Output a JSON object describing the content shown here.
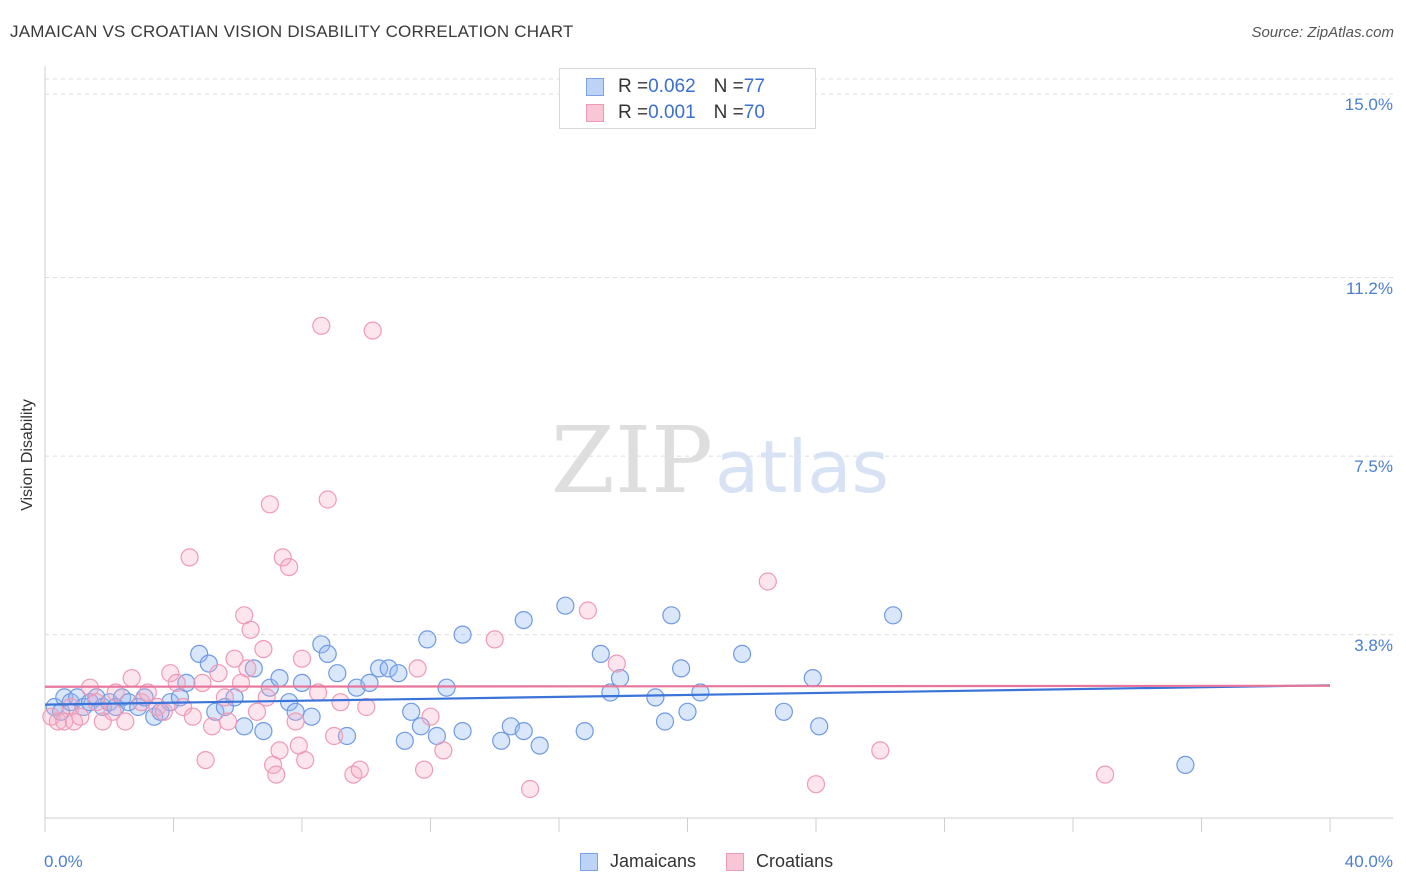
{
  "title": "JAMAICAN VS CROATIAN VISION DISABILITY CORRELATION CHART",
  "source": "Source: ZipAtlas.com",
  "watermark": {
    "zip": "ZIP",
    "atlas": "atlas"
  },
  "legend": {
    "rows": [
      {
        "r_label": "R = ",
        "r_value": "0.062",
        "n_label": "N = ",
        "n_value": "77",
        "color": "#6699ee"
      },
      {
        "r_label": "R = ",
        "r_value": "0.001",
        "n_label": "N = ",
        "n_value": "70",
        "color": "#f28fb0"
      }
    ]
  },
  "chart_data": {
    "type": "scatter",
    "title": "JAMAICAN VS CROATIAN VISION DISABILITY CORRELATION CHART",
    "ylabel": "Vision Disability",
    "xlabel": "",
    "xlim": [
      0,
      40
    ],
    "ylim": [
      0,
      15.5
    ],
    "x_tick_labels": [
      "0.0%",
      "40.0%"
    ],
    "y_ticks": [
      3.8,
      7.5,
      11.2,
      15.0
    ],
    "y_tick_labels": [
      "3.8%",
      "7.5%",
      "11.2%",
      "15.0%"
    ],
    "series": [
      {
        "name": "Jamaicans",
        "color": "#6699ee",
        "trend": {
          "x": [
            0,
            40
          ],
          "y": [
            2.35,
            2.75
          ]
        },
        "points": [
          [
            0.3,
            2.3
          ],
          [
            0.5,
            2.2
          ],
          [
            0.6,
            2.5
          ],
          [
            0.8,
            2.4
          ],
          [
            1.0,
            2.5
          ],
          [
            1.2,
            2.3
          ],
          [
            1.4,
            2.4
          ],
          [
            1.6,
            2.5
          ],
          [
            1.8,
            2.3
          ],
          [
            2.0,
            2.4
          ],
          [
            2.2,
            2.3
          ],
          [
            2.4,
            2.5
          ],
          [
            2.6,
            2.4
          ],
          [
            2.9,
            2.3
          ],
          [
            3.1,
            2.5
          ],
          [
            3.4,
            2.1
          ],
          [
            3.6,
            2.2
          ],
          [
            3.9,
            2.4
          ],
          [
            4.2,
            2.5
          ],
          [
            4.4,
            2.8
          ],
          [
            4.8,
            3.4
          ],
          [
            5.1,
            3.2
          ],
          [
            5.3,
            2.2
          ],
          [
            5.6,
            2.3
          ],
          [
            5.9,
            2.5
          ],
          [
            6.2,
            1.9
          ],
          [
            6.5,
            3.1
          ],
          [
            6.8,
            1.8
          ],
          [
            7.0,
            2.7
          ],
          [
            7.3,
            2.9
          ],
          [
            7.6,
            2.4
          ],
          [
            7.8,
            2.2
          ],
          [
            8.0,
            2.8
          ],
          [
            8.3,
            2.1
          ],
          [
            8.6,
            3.6
          ],
          [
            8.8,
            3.4
          ],
          [
            9.1,
            3.0
          ],
          [
            9.4,
            1.7
          ],
          [
            9.7,
            2.7
          ],
          [
            10.1,
            2.8
          ],
          [
            10.4,
            3.1
          ],
          [
            10.7,
            3.1
          ],
          [
            11.0,
            3.0
          ],
          [
            11.2,
            1.6
          ],
          [
            11.4,
            2.2
          ],
          [
            11.7,
            1.9
          ],
          [
            11.9,
            3.7
          ],
          [
            12.2,
            1.7
          ],
          [
            12.5,
            2.7
          ],
          [
            13.0,
            1.8
          ],
          [
            13.0,
            3.8
          ],
          [
            14.2,
            1.6
          ],
          [
            14.5,
            1.9
          ],
          [
            14.9,
            4.1
          ],
          [
            14.9,
            1.8
          ],
          [
            15.4,
            1.5
          ],
          [
            16.2,
            4.4
          ],
          [
            16.8,
            1.8
          ],
          [
            17.3,
            3.4
          ],
          [
            17.6,
            2.6
          ],
          [
            17.9,
            2.9
          ],
          [
            19.0,
            2.5
          ],
          [
            19.3,
            2.0
          ],
          [
            19.5,
            4.2
          ],
          [
            19.8,
            3.1
          ],
          [
            20.0,
            2.2
          ],
          [
            20.4,
            2.6
          ],
          [
            21.7,
            3.4
          ],
          [
            23.0,
            2.2
          ],
          [
            23.9,
            2.9
          ],
          [
            24.1,
            1.9
          ],
          [
            26.4,
            4.2
          ],
          [
            35.5,
            1.1
          ]
        ]
      },
      {
        "name": "Croatians",
        "color": "#f28fb0",
        "trend": {
          "x": [
            0,
            40
          ],
          "y": [
            2.72,
            2.74
          ]
        },
        "points": [
          [
            0.2,
            2.1
          ],
          [
            0.4,
            2.0
          ],
          [
            0.6,
            2.0
          ],
          [
            0.8,
            2.3
          ],
          [
            0.9,
            2.0
          ],
          [
            1.1,
            2.1
          ],
          [
            1.4,
            2.7
          ],
          [
            1.6,
            2.4
          ],
          [
            1.8,
            2.0
          ],
          [
            2.1,
            2.2
          ],
          [
            2.2,
            2.6
          ],
          [
            2.5,
            2.0
          ],
          [
            2.7,
            2.9
          ],
          [
            3.0,
            2.4
          ],
          [
            3.2,
            2.6
          ],
          [
            3.5,
            2.3
          ],
          [
            3.7,
            2.2
          ],
          [
            3.9,
            3.0
          ],
          [
            4.1,
            2.8
          ],
          [
            4.3,
            2.3
          ],
          [
            4.5,
            5.4
          ],
          [
            4.6,
            2.1
          ],
          [
            4.9,
            2.8
          ],
          [
            5.0,
            1.2
          ],
          [
            5.2,
            1.9
          ],
          [
            5.4,
            3.0
          ],
          [
            5.6,
            2.5
          ],
          [
            5.7,
            2.0
          ],
          [
            5.9,
            3.3
          ],
          [
            6.1,
            2.8
          ],
          [
            6.2,
            4.2
          ],
          [
            6.3,
            3.1
          ],
          [
            6.4,
            3.9
          ],
          [
            6.6,
            2.2
          ],
          [
            6.8,
            3.5
          ],
          [
            6.9,
            2.5
          ],
          [
            7.0,
            6.5
          ],
          [
            7.1,
            1.1
          ],
          [
            7.2,
            0.9
          ],
          [
            7.3,
            1.4
          ],
          [
            7.4,
            5.4
          ],
          [
            7.6,
            5.2
          ],
          [
            7.8,
            2.0
          ],
          [
            7.9,
            1.5
          ],
          [
            8.0,
            3.3
          ],
          [
            8.1,
            1.2
          ],
          [
            8.5,
            2.6
          ],
          [
            8.6,
            10.2
          ],
          [
            8.8,
            6.6
          ],
          [
            9.0,
            1.7
          ],
          [
            9.2,
            2.4
          ],
          [
            9.6,
            0.9
          ],
          [
            9.8,
            1.0
          ],
          [
            10.0,
            2.3
          ],
          [
            10.2,
            10.1
          ],
          [
            11.6,
            3.1
          ],
          [
            11.8,
            1.0
          ],
          [
            12.0,
            2.1
          ],
          [
            12.4,
            1.4
          ],
          [
            14.0,
            3.7
          ],
          [
            15.1,
            0.6
          ],
          [
            16.9,
            4.3
          ],
          [
            17.8,
            3.2
          ],
          [
            22.5,
            4.9
          ],
          [
            24.0,
            0.7
          ],
          [
            26.0,
            1.4
          ],
          [
            33.0,
            0.9
          ]
        ]
      }
    ]
  }
}
